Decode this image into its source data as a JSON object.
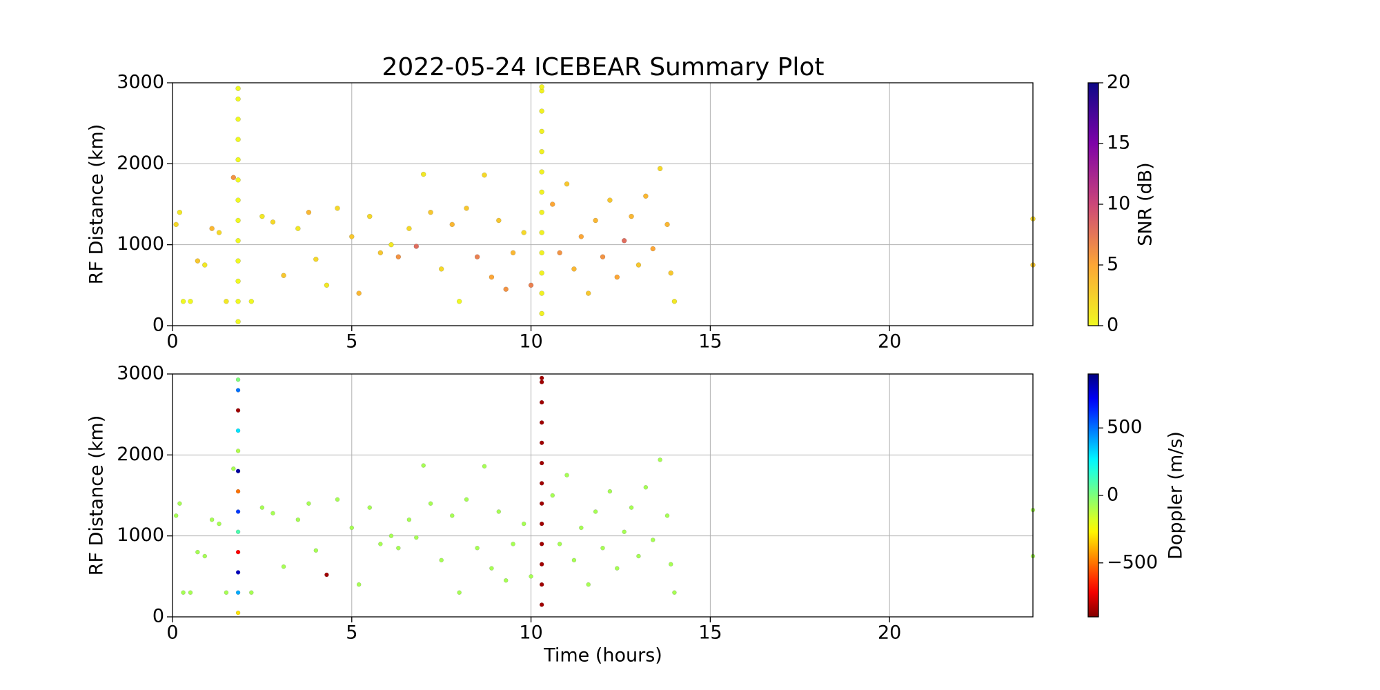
{
  "chart_data": [
    {
      "type": "scatter",
      "title": "2022-05-24 ICEBEAR Summary Plot",
      "ylabel": "RF Distance (km)",
      "xlim": [
        0,
        24
      ],
      "xticks": [
        0,
        5,
        10,
        15,
        20
      ],
      "ylim": [
        0,
        3000
      ],
      "yticks": [
        0,
        1000,
        2000,
        3000
      ],
      "grid": true,
      "x": [
        0.1,
        0.2,
        0.3,
        0.5,
        0.7,
        0.9,
        1.1,
        1.3,
        1.5,
        1.7,
        2.2,
        2.5,
        2.8,
        3.1,
        3.5,
        3.8,
        4.0,
        4.3,
        4.6,
        5.0,
        5.2,
        5.5,
        5.8,
        6.1,
        6.3,
        6.6,
        6.8,
        7.0,
        7.2,
        7.5,
        7.8,
        8.0,
        8.2,
        8.5,
        8.7,
        8.9,
        9.1,
        9.3,
        9.5,
        9.8,
        10.0,
        10.6,
        10.8,
        11.0,
        11.2,
        11.4,
        11.6,
        11.8,
        12.0,
        12.2,
        12.4,
        12.6,
        12.8,
        13.0,
        13.2,
        13.4,
        13.6,
        13.8,
        13.9,
        14.0,
        24.0,
        24.0,
        1.83,
        1.83,
        1.83,
        1.83,
        1.83,
        1.83,
        1.83,
        1.83,
        1.83,
        1.83,
        1.83,
        1.83,
        1.83,
        10.3,
        10.3,
        10.3,
        10.3,
        10.3,
        10.3,
        10.3,
        10.3,
        10.3,
        10.3,
        10.3,
        10.3,
        10.3
      ],
      "y": [
        1250,
        1400,
        300,
        300,
        800,
        750,
        1200,
        1150,
        300,
        1830,
        300,
        1350,
        1280,
        620,
        1200,
        1400,
        820,
        500,
        1450,
        1100,
        400,
        1350,
        900,
        1000,
        850,
        1200,
        980,
        1870,
        1400,
        700,
        1250,
        300,
        1450,
        850,
        1860,
        600,
        1300,
        450,
        900,
        1150,
        500,
        1500,
        900,
        1750,
        700,
        1100,
        400,
        1300,
        850,
        1550,
        600,
        1050,
        1350,
        750,
        1600,
        950,
        1940,
        1250,
        650,
        300,
        750,
        1320,
        50,
        300,
        550,
        800,
        1050,
        1300,
        1550,
        1800,
        2050,
        2300,
        2550,
        2800,
        2930,
        150,
        400,
        650,
        900,
        1150,
        1400,
        1650,
        1900,
        2150,
        2400,
        2650,
        2900,
        2950
      ],
      "c": [
        2,
        1,
        0,
        0,
        3,
        1,
        4,
        2,
        1,
        6,
        0,
        1,
        2,
        3,
        1,
        4,
        2,
        1,
        2,
        3,
        4,
        2,
        3,
        1,
        6,
        2,
        8,
        1,
        3,
        2,
        4,
        0,
        3,
        7,
        2,
        5,
        3,
        6,
        4,
        2,
        7,
        5,
        6,
        3,
        4,
        5,
        3,
        4,
        6,
        3,
        5,
        8,
        4,
        3,
        4,
        5,
        2,
        4,
        3,
        1,
        3,
        2,
        0,
        0,
        0,
        0,
        0,
        0,
        0,
        0,
        0,
        0,
        0,
        0,
        0,
        0.5,
        0.5,
        0.5,
        0.5,
        0.5,
        0.5,
        0.5,
        0.5,
        0.5,
        0.5,
        0.5,
        0.5,
        0.5
      ],
      "colorbar": {
        "label": "SNR (dB)",
        "lim": [
          0,
          20
        ],
        "ticks": [
          0,
          5,
          10,
          15,
          20
        ],
        "colormap": "plasma_r"
      }
    },
    {
      "type": "scatter",
      "xlabel": "Time (hours)",
      "ylabel": "RF Distance (km)",
      "xlim": [
        0,
        24
      ],
      "xticks": [
        0,
        5,
        10,
        15,
        20
      ],
      "ylim": [
        0,
        3000
      ],
      "yticks": [
        0,
        1000,
        2000,
        3000
      ],
      "grid": true,
      "x": [
        0.1,
        0.2,
        0.3,
        0.5,
        0.7,
        0.9,
        1.1,
        1.3,
        1.5,
        1.7,
        2.2,
        2.5,
        2.8,
        3.1,
        3.5,
        3.8,
        4.0,
        4.3,
        4.6,
        5.0,
        5.2,
        5.5,
        5.8,
        6.1,
        6.3,
        6.6,
        6.8,
        7.0,
        7.2,
        7.5,
        7.8,
        8.0,
        8.2,
        8.5,
        8.7,
        8.9,
        9.1,
        9.3,
        9.5,
        9.8,
        10.0,
        10.6,
        10.8,
        11.0,
        11.2,
        11.4,
        11.6,
        11.8,
        12.0,
        12.2,
        12.4,
        12.6,
        12.8,
        13.0,
        13.2,
        13.4,
        13.6,
        13.8,
        13.9,
        14.0,
        24.0,
        24.0,
        1.83,
        1.83,
        1.83,
        1.83,
        1.83,
        1.83,
        1.83,
        1.83,
        1.83,
        1.83,
        1.83,
        1.83,
        1.83,
        10.3,
        10.3,
        10.3,
        10.3,
        10.3,
        10.3,
        10.3,
        10.3,
        10.3,
        10.3,
        10.3,
        10.3,
        10.3
      ],
      "y": [
        1250,
        1400,
        300,
        300,
        800,
        750,
        1200,
        1150,
        300,
        1830,
        300,
        1350,
        1280,
        620,
        1200,
        1400,
        820,
        520,
        1450,
        1100,
        400,
        1350,
        900,
        1000,
        850,
        1200,
        980,
        1870,
        1400,
        700,
        1250,
        300,
        1450,
        850,
        1860,
        600,
        1300,
        450,
        900,
        1150,
        500,
        1500,
        900,
        1750,
        700,
        1100,
        400,
        1300,
        850,
        1550,
        600,
        1050,
        1350,
        750,
        1600,
        950,
        1940,
        1250,
        650,
        300,
        750,
        1320,
        50,
        300,
        550,
        800,
        1050,
        1300,
        1550,
        1800,
        2050,
        2300,
        2550,
        2800,
        2930,
        150,
        400,
        650,
        900,
        1150,
        1400,
        1650,
        1900,
        2150,
        2400,
        2650,
        2900,
        2950
      ],
      "c": [
        -80,
        -80,
        -80,
        -80,
        -80,
        -80,
        -80,
        -80,
        -80,
        -80,
        -80,
        -80,
        -80,
        -80,
        -80,
        -80,
        -80,
        -850,
        -80,
        -80,
        -80,
        -80,
        -80,
        -80,
        -80,
        -80,
        -80,
        -80,
        -80,
        -80,
        -80,
        -80,
        -80,
        -80,
        -80,
        -80,
        -80,
        -80,
        -80,
        -80,
        -80,
        -80,
        -80,
        -80,
        -80,
        -80,
        -80,
        -80,
        -80,
        -80,
        -80,
        -80,
        -80,
        -80,
        -80,
        -80,
        -80,
        -80,
        -80,
        -80,
        -80,
        -80,
        -300,
        400,
        800,
        -700,
        100,
        600,
        -500,
        850,
        -100,
        300,
        -850,
        500,
        0,
        -850,
        -850,
        -850,
        -850,
        -850,
        -850,
        -850,
        -850,
        -850,
        -850,
        -850,
        -850,
        -850
      ],
      "colorbar": {
        "label": "Doppler (m/s)",
        "lim": [
          -900,
          900
        ],
        "ticks": [
          {
            "value": -500,
            "label": "−500"
          },
          0,
          500
        ],
        "colormap": "jet_r"
      }
    }
  ]
}
